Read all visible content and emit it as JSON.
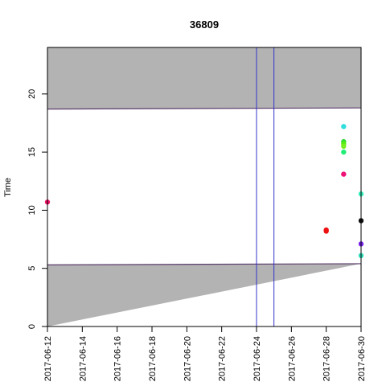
{
  "chart_data": {
    "type": "scatter",
    "title": "36809",
    "xlabel": "",
    "ylabel": "Time",
    "x_type": "date",
    "xlim": [
      "2017-06-12",
      "2017-06-30"
    ],
    "ylim": [
      0,
      24
    ],
    "x_ticks": [
      "2017-06-12",
      "2017-06-14",
      "2017-06-16",
      "2017-06-18",
      "2017-06-20",
      "2017-06-22",
      "2017-06-24",
      "2017-06-26",
      "2017-06-28",
      "2017-06-30"
    ],
    "y_ticks": [
      0,
      5,
      10,
      15,
      20
    ],
    "grid": false,
    "shaded_bands": [
      {
        "y_from_start": 0,
        "y_from_end": 5.4,
        "y_to_start": 5.3,
        "y_to_end": 5.4,
        "kind": "lower",
        "fill": "#b3b3b3"
      },
      {
        "y_from_start": 18.7,
        "y_from_end": 18.8,
        "y_to_start": 24,
        "y_to_end": 24,
        "kind": "upper",
        "fill": "#b3b3b3"
      }
    ],
    "band_lower_edge": {
      "start": 5.3,
      "end": 5.4,
      "color": "#5a3a6b"
    },
    "band_upper_edge": {
      "start": 18.7,
      "end": 18.8,
      "color": "#5a3a6b"
    },
    "vertical_lines": [
      {
        "x": "2017-06-24",
        "color": "#3333cc"
      },
      {
        "x": "2017-06-25",
        "color": "#3333cc"
      }
    ],
    "points": [
      {
        "x": "2017-06-12",
        "y": 10.7,
        "color": "#ee1166"
      },
      {
        "x": "2017-06-28",
        "y": 8.2,
        "color": "#ee1111"
      },
      {
        "x": "2017-06-28",
        "y": 8.3,
        "color": "#ee1111"
      },
      {
        "x": "2017-06-29",
        "y": 17.2,
        "color": "#33dddd"
      },
      {
        "x": "2017-06-29",
        "y": 15.9,
        "color": "#33dd33"
      },
      {
        "x": "2017-06-29",
        "y": 15.7,
        "color": "#55ee11"
      },
      {
        "x": "2017-06-29",
        "y": 15.5,
        "color": "#77ee22"
      },
      {
        "x": "2017-06-29",
        "y": 15.0,
        "color": "#22ee77"
      },
      {
        "x": "2017-06-29",
        "y": 13.1,
        "color": "#ee1177"
      },
      {
        "x": "2017-06-30",
        "y": 11.4,
        "color": "#33eebb"
      },
      {
        "x": "2017-06-30",
        "y": 9.1,
        "color": "#111111"
      },
      {
        "x": "2017-06-30",
        "y": 7.1,
        "color": "#7722ee"
      },
      {
        "x": "2017-06-30",
        "y": 6.1,
        "color": "#33ddbb"
      }
    ]
  }
}
